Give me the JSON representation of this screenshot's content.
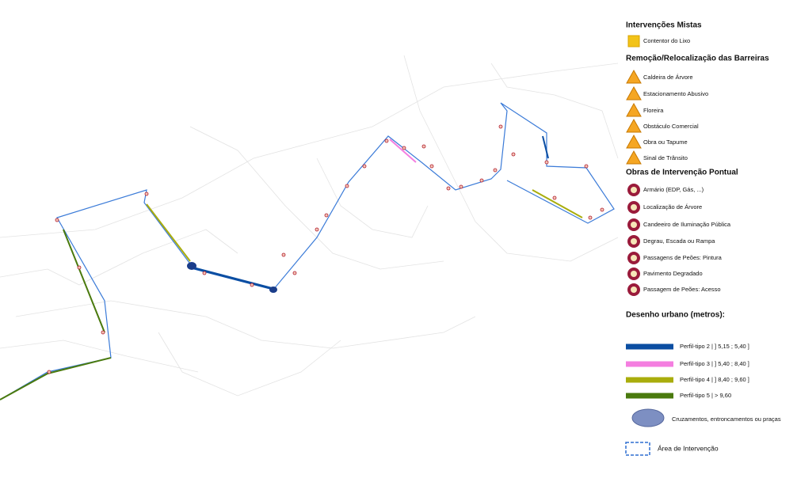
{
  "legend": {
    "sections": [
      {
        "title": "Intervenções Mistas",
        "items": [
          "Contentor do Lixo"
        ]
      },
      {
        "title": "Remoção/Relocalização das Barreiras",
        "items": [
          "Caldeira de Árvore",
          "Estacionamento Abusivo",
          "Floreira",
          "Obstáculo Comercial",
          "Obra ou Tapume",
          "Sinal de Trânsito"
        ]
      },
      {
        "title": "Obras de Intervenção Pontual",
        "items": [
          "Armário (EDP, Gás, ...)",
          "Localização de Árvore",
          "Candeeiro de Iluminação Pública",
          "Degrau, Escada ou Rampa",
          "Passagens de Peões: Pintura",
          "Pavimento Degradado",
          "Passagem de Peões: Acesso"
        ]
      }
    ],
    "urban_design": {
      "title": "Desenho urbano (metros):",
      "profiles": [
        {
          "label": "Perfil-tipo 2 | ] 5,15 ; 5,40 ]",
          "color": "#0b4ea2"
        },
        {
          "label": "Perfil-tipo 3 | ] 5,40 ; 8,40 ]",
          "color": "#f47ee0"
        },
        {
          "label": "Perfil-tipo 4 | ] 8,40 ; 9,60 ]",
          "color": "#a9ad0c"
        },
        {
          "label": "Perfil-tipo 5 | > 9,60",
          "color": "#4a7a0e"
        }
      ],
      "crossings": "Cruzamentos, entroncamentos ou praças",
      "area": "Área de Intervenção"
    }
  }
}
